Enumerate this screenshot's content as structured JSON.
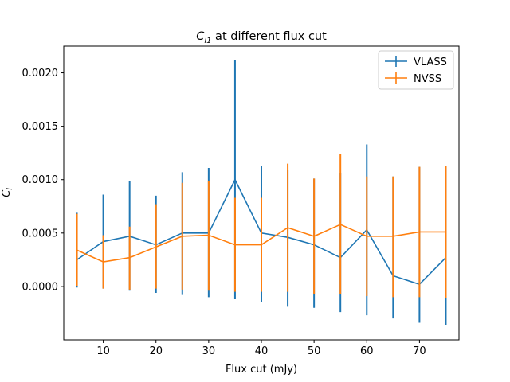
{
  "chart_data": {
    "type": "line",
    "title_main": "C",
    "title_sub": "l1",
    "title_rest": " at different flux cut",
    "xlabel": "Flux cut (mJy)",
    "ylabel_main": "C",
    "ylabel_sub": "l",
    "xlim": [
      2.5,
      77.5
    ],
    "ylim": [
      -0.0005,
      0.00225
    ],
    "xticks": [
      10,
      20,
      30,
      40,
      50,
      60,
      70
    ],
    "yticks": [
      0.0,
      0.0005,
      0.001,
      0.0015,
      0.002
    ],
    "ytick_labels": [
      "0.0000",
      "0.0005",
      "0.0010",
      "0.0015",
      "0.0020"
    ],
    "grid": false,
    "legend_position": "upper right",
    "x": [
      5,
      10,
      15,
      20,
      25,
      30,
      35,
      40,
      45,
      50,
      55,
      60,
      65,
      70,
      75
    ],
    "series": [
      {
        "name": "VLASS",
        "color": "#1f77b4",
        "values": [
          0.00025,
          0.00042,
          0.00047,
          0.00039,
          0.0005,
          0.0005,
          0.001,
          0.0005,
          0.00046,
          0.00039,
          0.00027,
          0.00053,
          0.0001,
          2e-05,
          0.00027
        ],
        "err_low": [
          -1e-05,
          -2e-05,
          -4e-05,
          -6e-05,
          -8e-05,
          -0.0001,
          -0.00012,
          -0.00015,
          -0.00019,
          -0.0002,
          -0.00024,
          -0.00027,
          -0.0003,
          -0.00034,
          -0.00036
        ],
        "err_high": [
          0.00069,
          0.00086,
          0.00099,
          0.00085,
          0.00107,
          0.00111,
          0.00212,
          0.00113,
          0.00109,
          0.00101,
          0.00106,
          0.00133,
          0.00103,
          0.00112,
          0.00113
        ]
      },
      {
        "name": "NVSS",
        "color": "#ff7f0e",
        "values": [
          0.00034,
          0.00023,
          0.00027,
          0.00037,
          0.00047,
          0.00048,
          0.00039,
          0.00039,
          0.00055,
          0.00047,
          0.00058,
          0.00047,
          0.00047,
          0.00051,
          0.00051
        ],
        "err_low": [
          0.0,
          -2e-05,
          -3e-05,
          -2e-05,
          -3e-05,
          -4e-05,
          -5e-05,
          -5e-05,
          -5e-05,
          -7e-05,
          -7e-05,
          -9e-05,
          -0.0001,
          -0.0001,
          -0.00011
        ],
        "err_high": [
          0.00068,
          0.00048,
          0.00056,
          0.00077,
          0.00097,
          0.00099,
          0.00083,
          0.00083,
          0.00115,
          0.00101,
          0.00124,
          0.00103,
          0.00103,
          0.00112,
          0.00113
        ]
      }
    ]
  }
}
